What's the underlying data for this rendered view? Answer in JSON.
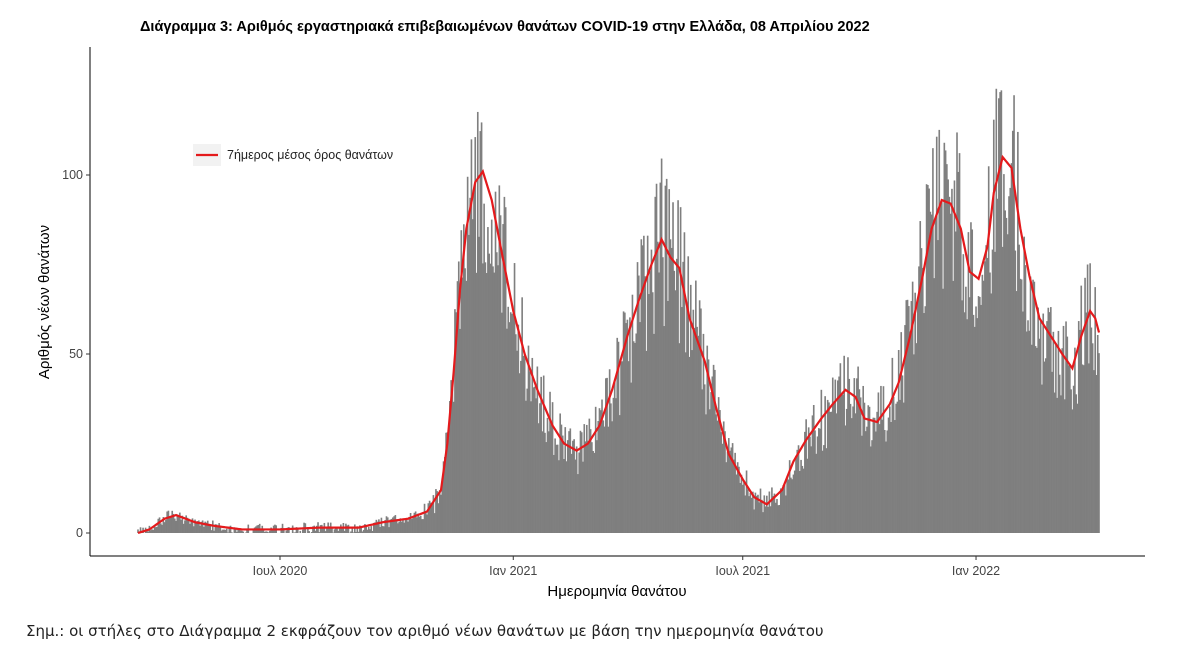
{
  "chart_data": {
    "type": "bar",
    "title": "Διάγραμμα 3: Αριθμός εργαστηριακά επιβεβαιωμένων θανάτων COVID-19 στην Ελλάδα, 08 Απριλίου 2022",
    "xlabel": "Ημερομηνία θανάτου",
    "ylabel": "Αριθμός νέων θανάτων",
    "x_range": [
      "2020-03-11",
      "2022-04-08"
    ],
    "ylim": [
      0,
      125
    ],
    "y_ticks": [
      0,
      50,
      100
    ],
    "x_ticks": [
      {
        "date": "2020-07-01",
        "label": "Ιουλ 2020"
      },
      {
        "date": "2021-01-01",
        "label": "Ιαν 2021"
      },
      {
        "date": "2021-07-01",
        "label": "Ιουλ 2021"
      },
      {
        "date": "2022-01-01",
        "label": "Ιαν 2022"
      }
    ],
    "grid": false,
    "legend_position": "top-left",
    "bar_color": "#7f7f7f",
    "line_color": "#e41a1c",
    "series": [
      {
        "name": "7ήμερος μέσος όρος θανάτων",
        "kind": "line",
        "points": [
          [
            "2020-03-11",
            0
          ],
          [
            "2020-03-20",
            1
          ],
          [
            "2020-04-01",
            4
          ],
          [
            "2020-04-10",
            5
          ],
          [
            "2020-04-25",
            3
          ],
          [
            "2020-05-10",
            2
          ],
          [
            "2020-06-01",
            1
          ],
          [
            "2020-07-01",
            1
          ],
          [
            "2020-08-01",
            1.5
          ],
          [
            "2020-09-01",
            1.5
          ],
          [
            "2020-09-20",
            3
          ],
          [
            "2020-10-10",
            4
          ],
          [
            "2020-10-25",
            6
          ],
          [
            "2020-11-05",
            12
          ],
          [
            "2020-11-10",
            25
          ],
          [
            "2020-11-15",
            45
          ],
          [
            "2020-11-20",
            68
          ],
          [
            "2020-11-25",
            85
          ],
          [
            "2020-12-02",
            98
          ],
          [
            "2020-12-08",
            101
          ],
          [
            "2020-12-15",
            93
          ],
          [
            "2020-12-22",
            80
          ],
          [
            "2021-01-01",
            62
          ],
          [
            "2021-01-10",
            50
          ],
          [
            "2021-01-20",
            40
          ],
          [
            "2021-02-01",
            30
          ],
          [
            "2021-02-10",
            25
          ],
          [
            "2021-02-20",
            23
          ],
          [
            "2021-03-01",
            25
          ],
          [
            "2021-03-10",
            30
          ],
          [
            "2021-03-20",
            40
          ],
          [
            "2021-04-01",
            55
          ],
          [
            "2021-04-10",
            65
          ],
          [
            "2021-04-20",
            75
          ],
          [
            "2021-04-28",
            82
          ],
          [
            "2021-05-05",
            77
          ],
          [
            "2021-05-12",
            74
          ],
          [
            "2021-05-20",
            60
          ],
          [
            "2021-06-01",
            48
          ],
          [
            "2021-06-10",
            35
          ],
          [
            "2021-06-20",
            22
          ],
          [
            "2021-07-01",
            15
          ],
          [
            "2021-07-10",
            10
          ],
          [
            "2021-07-20",
            8
          ],
          [
            "2021-08-01",
            12
          ],
          [
            "2021-08-10",
            20
          ],
          [
            "2021-08-20",
            26
          ],
          [
            "2021-09-01",
            32
          ],
          [
            "2021-09-10",
            36
          ],
          [
            "2021-09-20",
            40
          ],
          [
            "2021-09-28",
            38
          ],
          [
            "2021-10-05",
            32
          ],
          [
            "2021-10-15",
            31
          ],
          [
            "2021-10-25",
            36
          ],
          [
            "2021-11-01",
            42
          ],
          [
            "2021-11-10",
            55
          ],
          [
            "2021-11-20",
            72
          ],
          [
            "2021-11-27",
            85
          ],
          [
            "2021-12-05",
            93
          ],
          [
            "2021-12-12",
            92
          ],
          [
            "2021-12-20",
            85
          ],
          [
            "2021-12-27",
            73
          ],
          [
            "2022-01-03",
            71
          ],
          [
            "2022-01-10",
            80
          ],
          [
            "2022-01-15",
            95
          ],
          [
            "2022-01-22",
            105
          ],
          [
            "2022-01-29",
            102
          ],
          [
            "2022-02-05",
            85
          ],
          [
            "2022-02-12",
            72
          ],
          [
            "2022-02-20",
            60
          ],
          [
            "2022-03-01",
            55
          ],
          [
            "2022-03-10",
            50
          ],
          [
            "2022-03-18",
            46
          ],
          [
            "2022-03-25",
            55
          ],
          [
            "2022-04-01",
            62
          ],
          [
            "2022-04-05",
            60
          ],
          [
            "2022-04-08",
            56
          ]
        ]
      }
    ]
  },
  "footnote": "Σημ.: οι στήλες στο Διάγραμμα 2 εκφράζουν τον αριθμό νέων θανάτων με βάση την ημερομηνία θανάτου"
}
